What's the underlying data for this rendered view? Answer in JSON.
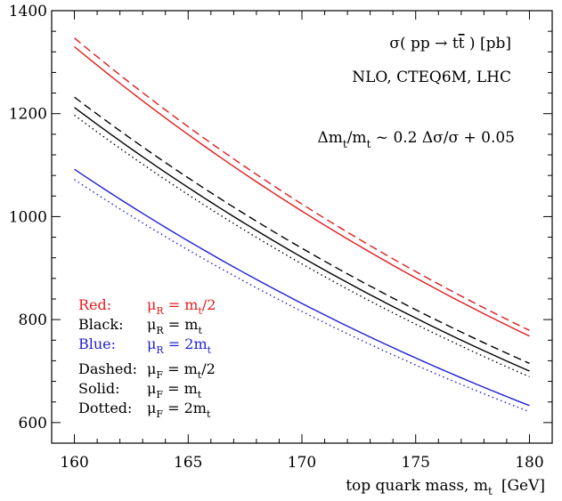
{
  "chart_data": {
    "type": "line",
    "xlabel": "top quark mass, m",
    "xlabel_sub": "t",
    "xlabel_unit": "[GeV]",
    "xlim": [
      159,
      181
    ],
    "ylim": [
      560,
      1400
    ],
    "x_ticks": [
      160,
      165,
      170,
      175,
      180
    ],
    "y_ticks": [
      600,
      800,
      1000,
      1200,
      1400
    ],
    "grid": false,
    "annotations": {
      "process": {
        "pre": "σ( pp → t",
        "tbar": "t",
        "post": " ) [pb]"
      },
      "setup": "NLO, CTEQ6M, LHC",
      "relation": {
        "a": "Δm",
        "a_sub": "t",
        "b": "/m",
        "b_sub": "t",
        "c": " ~ 0.2 Δσ/σ + 0.05"
      }
    },
    "legend_placement": "bottom-left",
    "legend": {
      "colors": [
        {
          "label": "Red:",
          "mu": "μ",
          "mu_sub": "R",
          "eq": " = m",
          "eq_sub": "t",
          "suffix": "/2",
          "color": "#e31a1c"
        },
        {
          "label": "Black:",
          "mu": "μ",
          "mu_sub": "R",
          "eq": " = m",
          "eq_sub": "t",
          "suffix": "",
          "color": "#000000"
        },
        {
          "label": "Blue:",
          "mu": "μ",
          "mu_sub": "R",
          "eq": " = 2m",
          "eq_sub": "t",
          "suffix": "",
          "color": "#1f1fd6"
        }
      ],
      "styles": [
        {
          "label": "Dashed:",
          "mu": "μ",
          "mu_sub": "F",
          "eq": " = m",
          "eq_sub": "t",
          "suffix": "/2"
        },
        {
          "label": "Solid:",
          "mu": "μ",
          "mu_sub": "F",
          "eq": " = m",
          "eq_sub": "t",
          "suffix": ""
        },
        {
          "label": "Dotted:",
          "mu": "μ",
          "mu_sub": "F",
          "eq": " = 2m",
          "eq_sub": "t",
          "suffix": ""
        }
      ]
    },
    "x": [
      160,
      180
    ],
    "series": [
      {
        "color": "#e31a1c",
        "dash": "dashed",
        "values": [
          1347,
          779
        ]
      },
      {
        "color": "#e31a1c",
        "dash": "solid",
        "values": [
          1330,
          768
        ]
      },
      {
        "color": "#000000",
        "dash": "dashed",
        "values": [
          1232,
          715
        ]
      },
      {
        "color": "#000000",
        "dash": "solid",
        "values": [
          1212,
          700
        ]
      },
      {
        "color": "#000000",
        "dash": "dotted",
        "values": [
          1197,
          689
        ]
      },
      {
        "color": "#1f1fd6",
        "dash": "solid",
        "values": [
          1092,
          633
        ]
      },
      {
        "color": "#1f1fd6",
        "dash": "dotted",
        "values": [
          1072,
          621
        ]
      }
    ]
  }
}
